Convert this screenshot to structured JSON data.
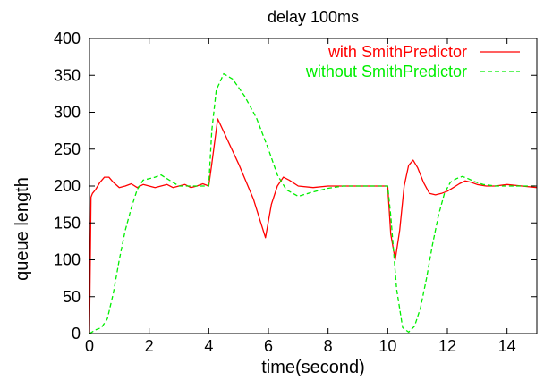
{
  "chart_data": {
    "type": "line",
    "title": "delay 100ms",
    "xlabel": "time(second)",
    "ylabel": "queue length",
    "xlim": [
      0,
      15
    ],
    "ylim": [
      0,
      400
    ],
    "xticks": [
      0,
      2,
      4,
      6,
      8,
      10,
      12,
      14
    ],
    "yticks": [
      0,
      50,
      100,
      150,
      200,
      250,
      300,
      350,
      400
    ],
    "grid": false,
    "legend_position": "top-right",
    "series": [
      {
        "name": "with SmithPredictor",
        "color": "#ff0000",
        "dash": "solid",
        "x": [
          0.0,
          0.05,
          0.1,
          0.2,
          0.35,
          0.5,
          0.65,
          0.8,
          1.0,
          1.2,
          1.4,
          1.6,
          1.8,
          2.0,
          2.2,
          2.4,
          2.6,
          2.8,
          3.0,
          3.2,
          3.4,
          3.6,
          3.8,
          4.0,
          4.1,
          4.3,
          4.6,
          5.0,
          5.5,
          5.9,
          6.1,
          6.3,
          6.5,
          6.7,
          7.0,
          7.5,
          8.0,
          8.5,
          9.0,
          9.5,
          10.0,
          10.1,
          10.25,
          10.4,
          10.55,
          10.7,
          10.85,
          11.0,
          11.2,
          11.4,
          11.6,
          11.8,
          12.0,
          12.2,
          12.4,
          12.6,
          12.8,
          13.0,
          13.3,
          13.6,
          14.0,
          14.5,
          15.0
        ],
        "y": [
          0,
          185,
          190,
          195,
          205,
          212,
          212,
          205,
          198,
          200,
          203,
          198,
          202,
          200,
          198,
          200,
          202,
          198,
          200,
          202,
          198,
          200,
          203,
          200,
          230,
          291,
          265,
          230,
          182,
          130,
          175,
          200,
          212,
          208,
          200,
          198,
          200,
          200,
          200,
          200,
          200,
          135,
          100,
          140,
          200,
          228,
          235,
          225,
          205,
          190,
          188,
          190,
          193,
          198,
          203,
          207,
          205,
          202,
          200,
          200,
          202,
          200,
          198
        ]
      },
      {
        "name": "without SmithPredictor",
        "color": "#00ee00",
        "dash": "dashed",
        "x": [
          0.0,
          0.2,
          0.4,
          0.6,
          0.8,
          1.0,
          1.2,
          1.4,
          1.6,
          1.8,
          2.0,
          2.2,
          2.4,
          2.6,
          2.8,
          3.0,
          3.2,
          3.5,
          3.8,
          4.0,
          4.1,
          4.25,
          4.5,
          4.8,
          5.2,
          5.6,
          6.0,
          6.3,
          6.6,
          7.0,
          7.5,
          8.0,
          8.5,
          9.0,
          9.5,
          10.0,
          10.1,
          10.3,
          10.5,
          10.7,
          10.9,
          11.1,
          11.3,
          11.5,
          11.7,
          11.9,
          12.1,
          12.3,
          12.5,
          12.7,
          12.9,
          13.2,
          13.6,
          14.0,
          14.5,
          15.0
        ],
        "y": [
          0,
          5,
          8,
          20,
          55,
          100,
          140,
          170,
          195,
          208,
          210,
          212,
          215,
          210,
          205,
          200,
          200,
          200,
          200,
          200,
          275,
          330,
          352,
          345,
          322,
          292,
          250,
          215,
          195,
          186,
          192,
          197,
          200,
          200,
          200,
          200,
          160,
          60,
          8,
          2,
          10,
          35,
          75,
          120,
          160,
          190,
          205,
          210,
          213,
          210,
          206,
          202,
          200,
          200,
          200,
          200
        ]
      }
    ]
  }
}
